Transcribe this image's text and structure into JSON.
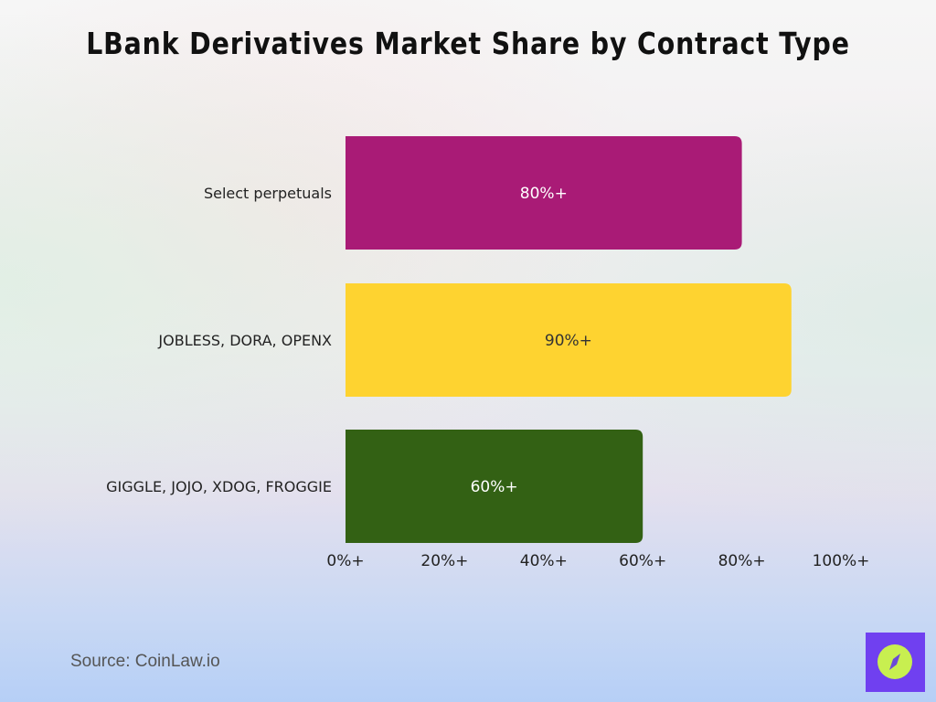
{
  "chart_data": {
    "type": "bar",
    "orientation": "horizontal",
    "title": "LBank Derivatives Market Share by Contract Type",
    "categories": [
      "Select perpetuals",
      "JOBLESS, DORA, OPENX",
      "GIGGLE, JOJO, XDOG, FROGGIE"
    ],
    "values": [
      80,
      90,
      60
    ],
    "data_labels": [
      "80%+",
      "90%+",
      "60%+"
    ],
    "colors": [
      "#a91b76",
      "#fed330",
      "#336114"
    ],
    "xlim": [
      0,
      100
    ],
    "xticks": [
      0,
      20,
      40,
      60,
      80,
      100
    ],
    "xtick_labels": [
      "0%+",
      "20%+",
      "40%+",
      "60%+",
      "80%+",
      "100%+"
    ],
    "grid": false,
    "xlabel": "",
    "ylabel": ""
  },
  "footer": {
    "source": "Source: CoinLaw.io"
  },
  "logo": {
    "icon": "compass-icon",
    "color": "#7040f0",
    "accent": "#c8ef50"
  }
}
